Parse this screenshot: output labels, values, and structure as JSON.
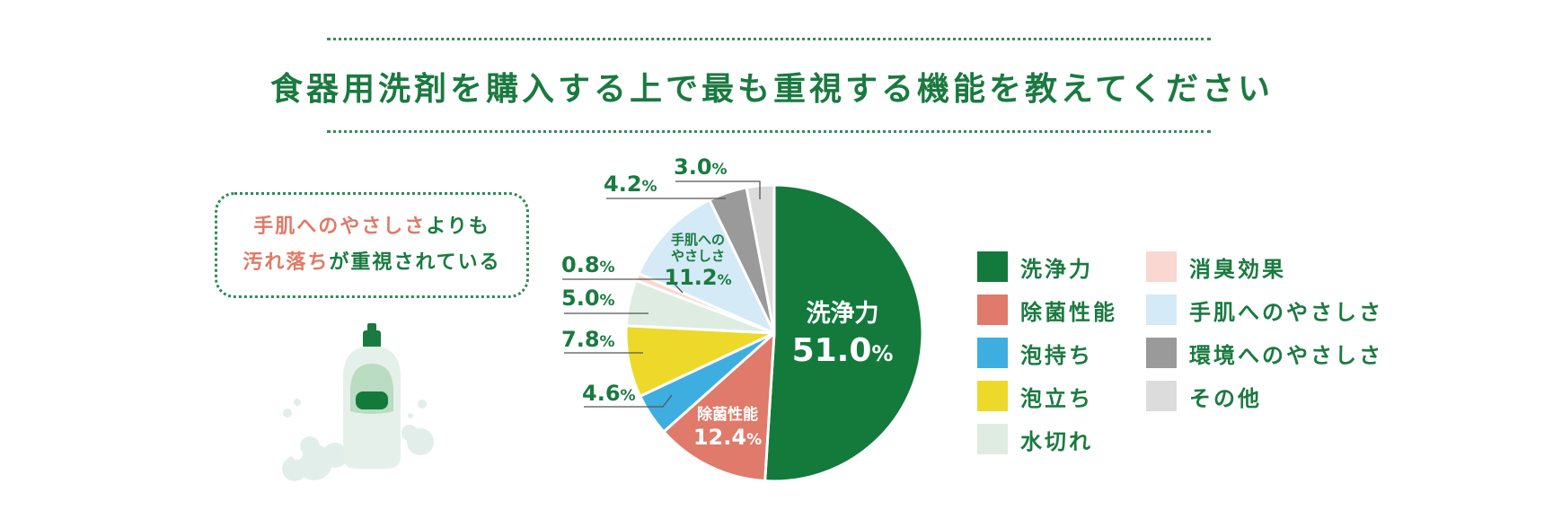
{
  "title": "食器用洗剤を購入する上で最も重視する機能を教えてください",
  "callout": {
    "line1_highlight": "手肌へのやさしさ",
    "line1_rest": "よりも",
    "line2_highlight": "汚れ落ち",
    "line2_rest": "が重視されている"
  },
  "chart_data": {
    "type": "pie",
    "title": "食器用洗剤を購入する上で最も重視する機能を教えてください",
    "unit": "%",
    "slices": [
      {
        "label": "洗浄力",
        "value": 51.0,
        "color": "#137a3c"
      },
      {
        "label": "除菌性能",
        "value": 12.4,
        "color": "#e07a6a"
      },
      {
        "label": "泡持ち",
        "value": 4.6,
        "color": "#3eaee0"
      },
      {
        "label": "泡立ち",
        "value": 7.8,
        "color": "#ecd92a"
      },
      {
        "label": "水切れ",
        "value": 5.0,
        "color": "#dfece2"
      },
      {
        "label": "消臭効果",
        "value": 0.8,
        "color": "#f8d8d0"
      },
      {
        "label": "手肌へのやさしさ",
        "value": 11.2,
        "color": "#d4eaf6"
      },
      {
        "label": "環境へのやさしさ",
        "value": 4.2,
        "color": "#9a9a9a"
      },
      {
        "label": "その他",
        "value": 3.0,
        "color": "#dcdcdc"
      }
    ],
    "inside_labels": {
      "senjo_name": "洗浄力",
      "senjo_value": "51.0",
      "jokin_name": "除菌性能",
      "jokin_value": "12.4",
      "tehada_line1": "手肌への",
      "tehada_line2": "やさしさ",
      "tehada_value": "11.2"
    },
    "outside_labels": {
      "awamochi": "4.6",
      "awadachi": "7.8",
      "mizukire": "5.0",
      "shoshu": "0.8",
      "kankyo": "4.2",
      "sonota": "3.0"
    },
    "legend_placement": "right",
    "legend": [
      "洗浄力",
      "除菌性能",
      "泡持ち",
      "泡立ち",
      "水切れ",
      "消臭効果",
      "手肌へのやさしさ",
      "環境へのやさしさ",
      "その他"
    ]
  }
}
